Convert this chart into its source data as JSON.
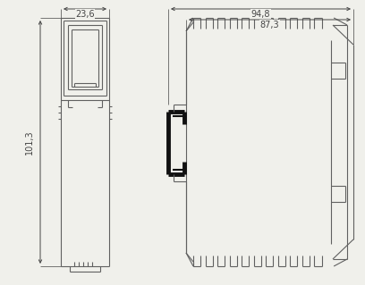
{
  "bg_color": "#f0f0eb",
  "line_color": "#606060",
  "dark_line": "#111111",
  "dim_color": "#444444",
  "dim_text_23_6": "23,6",
  "dim_text_101_3": "101,3",
  "dim_text_94_8": "94,8",
  "dim_text_87_3": "87,3",
  "font_size": 7.0
}
